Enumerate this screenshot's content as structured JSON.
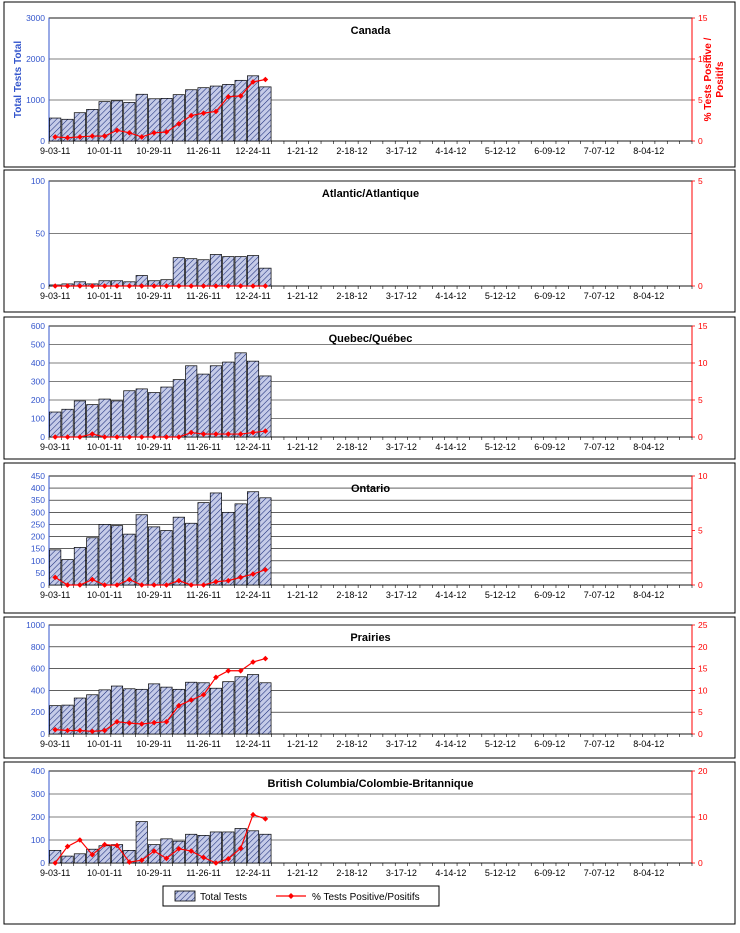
{
  "legend": {
    "bar_label": "Total Tests",
    "line_label": "% Tests Positive/Positifs"
  },
  "y_left_title": "Total Tests Total",
  "y_right_title": [
    "% Tests Positive /",
    "Positifs"
  ],
  "x_tick_labels": [
    "9-03-11",
    "10-01-11",
    "10-29-11",
    "11-26-11",
    "12-24-11",
    "1-21-12",
    "2-18-12",
    "3-17-12",
    "4-14-12",
    "5-12-12",
    "6-09-12",
    "7-07-12",
    "8-04-12"
  ],
  "colors": {
    "bar_fill": "#c5cbe8",
    "bar_hatch": "#1a2c7a",
    "line": "#ff0000",
    "left_axis": "#3355cc",
    "right_axis": "#ff0000"
  },
  "chart_data": [
    {
      "type": "bar",
      "title": "Canada",
      "x_unit": "week (2011-09-03 to 2012-08-25)",
      "ylim": [
        0,
        3000
      ],
      "y_ticks": [
        0,
        1000,
        2000,
        3000
      ],
      "y2lim": [
        0,
        15
      ],
      "y2_ticks": [
        0,
        5,
        10,
        15
      ],
      "series": [
        {
          "name": "Total Tests",
          "type": "bar",
          "values": [
            560,
            530,
            690,
            770,
            960,
            980,
            940,
            1140,
            1030,
            1040,
            1130,
            1250,
            1300,
            1340,
            1380,
            1480,
            1590,
            1320
          ]
        },
        {
          "name": "% Tests Positive/Positifs",
          "type": "line",
          "values": [
            0.5,
            0.4,
            0.5,
            0.6,
            0.6,
            1.3,
            1.0,
            0.5,
            1.0,
            1.1,
            2.1,
            3.1,
            3.4,
            3.6,
            5.4,
            5.5,
            7.2,
            7.5
          ]
        }
      ]
    },
    {
      "type": "bar",
      "title": "Atlantic/Atlantique",
      "x_unit": "week (2011-09-03 to 2012-08-25)",
      "ylim": [
        0,
        100
      ],
      "y_ticks": [
        0,
        50,
        100
      ],
      "y2lim": [
        0,
        5
      ],
      "y2_ticks": [
        0,
        5
      ],
      "series": [
        {
          "name": "Total Tests",
          "type": "bar",
          "values": [
            1,
            2,
            4,
            2,
            5,
            5,
            4,
            10,
            5,
            6,
            27,
            26,
            25,
            30,
            28,
            28,
            29,
            17
          ]
        },
        {
          "name": "% Tests Positive/Positifs",
          "type": "line",
          "values": [
            0,
            0,
            0,
            0,
            0,
            0,
            0,
            0,
            0,
            0,
            0,
            0,
            0,
            0,
            0,
            0,
            0,
            0
          ]
        }
      ]
    },
    {
      "type": "bar",
      "title": "Quebec/Québec",
      "x_unit": "week (2011-09-03 to 2012-08-25)",
      "ylim": [
        0,
        600
      ],
      "y_ticks": [
        0,
        100,
        200,
        300,
        400,
        500,
        600
      ],
      "y2lim": [
        0,
        15
      ],
      "y2_ticks": [
        0,
        5,
        10,
        15
      ],
      "series": [
        {
          "name": "Total Tests",
          "type": "bar",
          "values": [
            135,
            150,
            195,
            175,
            205,
            195,
            250,
            260,
            240,
            270,
            310,
            385,
            340,
            385,
            405,
            455,
            410,
            330
          ]
        },
        {
          "name": "% Tests Positive/Positifs",
          "type": "line",
          "values": [
            0,
            0,
            0,
            0.4,
            0,
            0,
            0,
            0,
            0,
            0,
            0,
            0.6,
            0.4,
            0.4,
            0.4,
            0.4,
            0.6,
            0.8
          ]
        }
      ]
    },
    {
      "type": "bar",
      "title": "Ontario",
      "x_unit": "week (2011-09-03 to 2012-08-25)",
      "ylim": [
        0,
        450
      ],
      "y_ticks": [
        0,
        50,
        100,
        150,
        200,
        250,
        300,
        350,
        400,
        450
      ],
      "y2lim": [
        0,
        10
      ],
      "y2_ticks": [
        0,
        5,
        10
      ],
      "series": [
        {
          "name": "Total Tests",
          "type": "bar",
          "values": [
            145,
            105,
            155,
            195,
            250,
            245,
            210,
            290,
            240,
            225,
            280,
            255,
            340,
            380,
            300,
            335,
            385,
            360
          ]
        },
        {
          "name": "% Tests Positive/Positifs",
          "type": "line",
          "values": [
            0.7,
            0,
            0,
            0.5,
            0,
            0,
            0.5,
            0,
            0,
            0,
            0.4,
            0,
            0,
            0.3,
            0.4,
            0.7,
            1.0,
            1.4
          ]
        }
      ]
    },
    {
      "type": "bar",
      "title": "Prairies",
      "x_unit": "week (2011-09-03 to 2012-08-25)",
      "ylim": [
        0,
        1000
      ],
      "y_ticks": [
        0,
        200,
        400,
        600,
        800,
        1000
      ],
      "y2lim": [
        0,
        25
      ],
      "y2_ticks": [
        0,
        5,
        10,
        15,
        20,
        25
      ],
      "series": [
        {
          "name": "Total Tests",
          "type": "bar",
          "values": [
            260,
            265,
            330,
            360,
            405,
            440,
            415,
            410,
            460,
            430,
            410,
            475,
            470,
            420,
            480,
            525,
            545,
            470
          ]
        },
        {
          "name": "% Tests Positive/Positifs",
          "type": "line",
          "values": [
            1,
            0.8,
            0.8,
            0.6,
            0.8,
            2.8,
            2.5,
            2.3,
            2.6,
            2.8,
            6.5,
            7.8,
            9,
            13,
            14.5,
            14.5,
            16.5,
            17.3
          ]
        }
      ]
    },
    {
      "type": "bar",
      "title": "British Columbia/Colombie-Britannique",
      "x_unit": "week (2011-09-03 to 2012-08-25)",
      "ylim": [
        0,
        400
      ],
      "y_ticks": [
        0,
        100,
        200,
        300,
        400
      ],
      "y2lim": [
        0,
        20
      ],
      "y2_ticks": [
        0,
        10,
        20
      ],
      "series": [
        {
          "name": "Total Tests",
          "type": "bar",
          "values": [
            55,
            30,
            40,
            60,
            75,
            80,
            55,
            180,
            80,
            105,
            95,
            125,
            120,
            135,
            135,
            150,
            140,
            125
          ]
        },
        {
          "name": "% Tests Positive/Positifs",
          "type": "line",
          "values": [
            0,
            3.6,
            5,
            1.8,
            4,
            3.8,
            0.2,
            0.6,
            2.6,
            1,
            3.1,
            2.6,
            1.2,
            0,
            0.9,
            3.2,
            10.5,
            9.6
          ]
        }
      ]
    }
  ]
}
